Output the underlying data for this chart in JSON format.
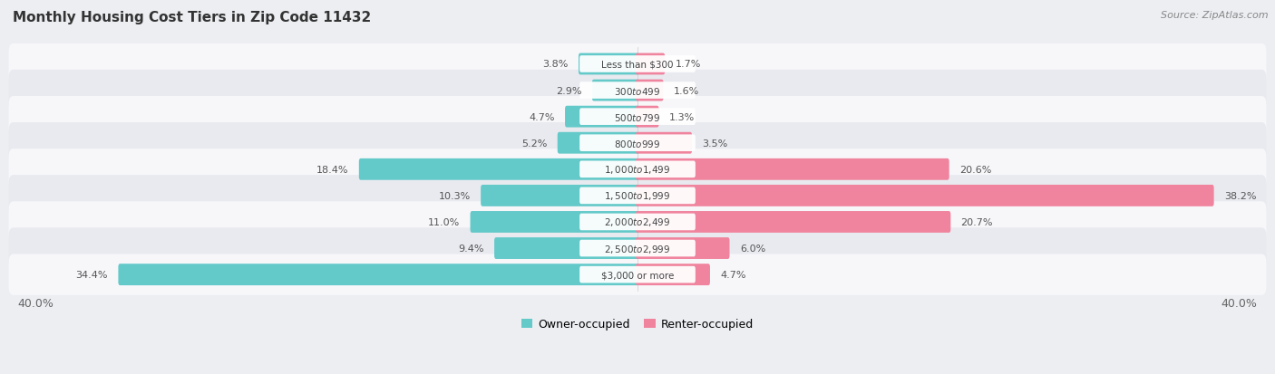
{
  "title": "Monthly Housing Cost Tiers in Zip Code 11432",
  "source": "Source: ZipAtlas.com",
  "categories": [
    "Less than $300",
    "$300 to $499",
    "$500 to $799",
    "$800 to $999",
    "$1,000 to $1,499",
    "$1,500 to $1,999",
    "$2,000 to $2,499",
    "$2,500 to $2,999",
    "$3,000 or more"
  ],
  "owner_values": [
    3.8,
    2.9,
    4.7,
    5.2,
    18.4,
    10.3,
    11.0,
    9.4,
    34.4
  ],
  "renter_values": [
    1.7,
    1.6,
    1.3,
    3.5,
    20.6,
    38.2,
    20.7,
    6.0,
    4.7
  ],
  "owner_color": "#63C9C9",
  "renter_color": "#F0839D",
  "axis_max": 40.0,
  "background_color": "#eceef2",
  "row_bg_light": "#f7f7fa",
  "row_bg_dark": "#e8eaef",
  "bar_height": 0.58,
  "legend_owner": "Owner-occupied",
  "legend_renter": "Renter-occupied"
}
